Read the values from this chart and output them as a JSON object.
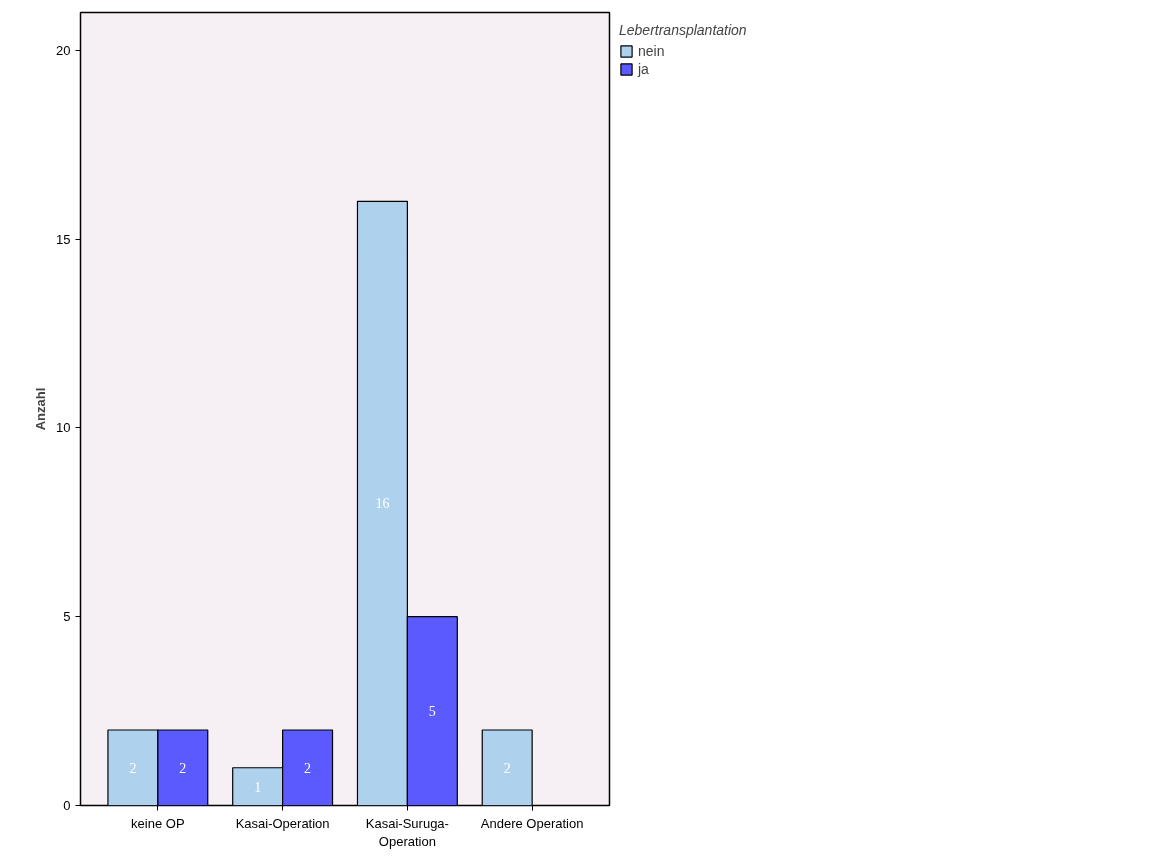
{
  "chart_data": {
    "type": "bar",
    "ylabel": "Anzahl",
    "legend_title": "Lebertransplantation",
    "categories": [
      "keine OP",
      "Kasai-Operation",
      "Kasai-Suruga-Operation",
      "Andere Operation"
    ],
    "series": [
      {
        "name": "nein",
        "color": "#aed2ee",
        "values": [
          2,
          1,
          16,
          2
        ]
      },
      {
        "name": "ja",
        "color": "#5a5aff",
        "values": [
          2,
          2,
          5,
          null
        ]
      }
    ],
    "ylim": [
      0,
      21
    ],
    "yticks": [
      0,
      5,
      10,
      15,
      20
    ],
    "grid": false,
    "legend": "top right",
    "data_labels": true
  }
}
